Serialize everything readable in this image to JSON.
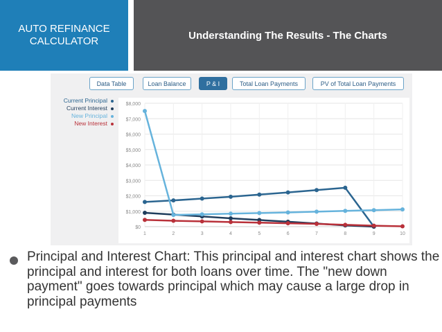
{
  "header": {
    "left_line1": "AUTO REFINANCE",
    "left_line2": "CALCULATOR",
    "title": "Understanding The Results - The Charts"
  },
  "tabs": [
    {
      "label": "Data Table",
      "active": false
    },
    {
      "label": "Loan Balance",
      "active": false
    },
    {
      "label": "P & I",
      "active": true
    },
    {
      "label": "Total Loan Payments",
      "active": false
    },
    {
      "label": "PV of Total Loan Payments",
      "active": false
    }
  ],
  "legend": [
    {
      "label": "Current Principal",
      "color": "#2b6590"
    },
    {
      "label": "Current Interest",
      "color": "#1f3d5c"
    },
    {
      "label": "New Principal",
      "color": "#66b3dc"
    },
    {
      "label": "New Interest",
      "color": "#b9313a"
    }
  ],
  "chart_data": {
    "type": "line",
    "x": [
      1,
      2,
      3,
      4,
      5,
      6,
      7,
      8,
      9,
      10
    ],
    "y_tick_labels": [
      "$0",
      "$1,000",
      "$2,000",
      "$3,000",
      "$4,000",
      "$5,000",
      "$6,000",
      "$7,000",
      "$8,000"
    ],
    "x_tick_labels": [
      "1",
      "2",
      "3",
      "4",
      "5",
      "6",
      "7",
      "8",
      "9",
      "10"
    ],
    "ylim": [
      0,
      8000
    ],
    "xlim": [
      1,
      10
    ],
    "grid": true,
    "series": [
      {
        "name": "Current Principal",
        "color": "#2b6590",
        "values": [
          1600,
          1700,
          1820,
          1940,
          2080,
          2220,
          2370,
          2520,
          0,
          null
        ]
      },
      {
        "name": "Current Interest",
        "color": "#1f3d5c",
        "values": [
          900,
          780,
          660,
          540,
          430,
          320,
          200,
          80,
          0,
          null
        ]
      },
      {
        "name": "New Principal",
        "color": "#66b3dc",
        "values": [
          7500,
          760,
          800,
          840,
          880,
          920,
          970,
          1020,
          1070,
          1120
        ]
      },
      {
        "name": "New Interest",
        "color": "#b9313a",
        "values": [
          440,
          380,
          340,
          300,
          260,
          220,
          180,
          120,
          60,
          20
        ]
      }
    ]
  },
  "bullet": {
    "text": "Principal and Interest Chart: This principal and interest chart shows the principal and interest for both loans over time.  The \"new down payment\" goes towards principal which may cause a large drop in principal payments"
  }
}
